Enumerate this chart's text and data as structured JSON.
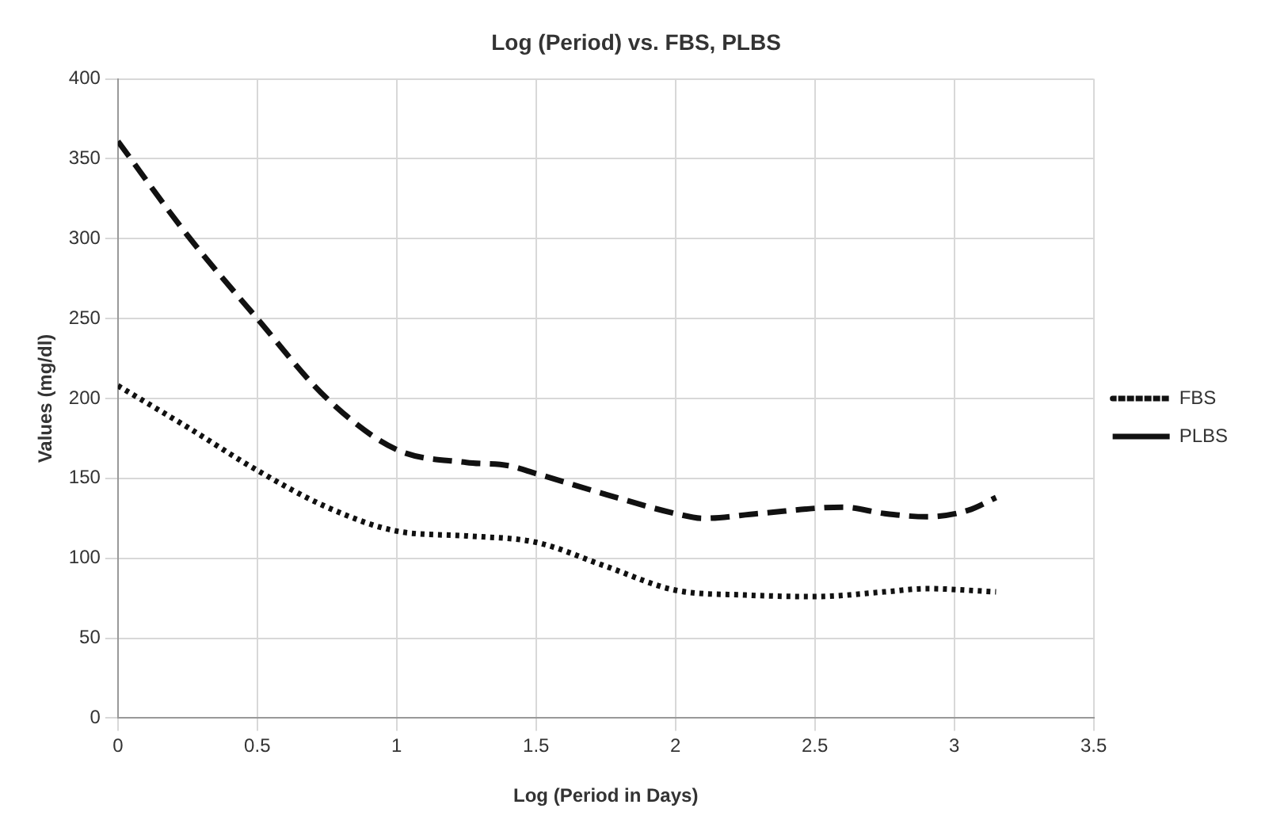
{
  "chart_data": {
    "type": "line",
    "title": "Log (Period) vs. FBS, PLBS",
    "xlabel": "Log (Period in Days)",
    "ylabel": "Values (mg/dl)",
    "xlim": [
      0,
      3.5
    ],
    "xticks": [
      0,
      0.5,
      1,
      1.5,
      2,
      2.5,
      3,
      3.5
    ],
    "ylim": [
      0,
      400
    ],
    "yticks": [
      0,
      50,
      100,
      150,
      200,
      250,
      300,
      350,
      400
    ],
    "grid": true,
    "legend": "right",
    "marker": "none",
    "series": [
      {
        "name": "FBS",
        "color": "#111111",
        "line_style": "dotted",
        "x": [
          0,
          0.25,
          0.5,
          0.75,
          1,
          1.25,
          1.5,
          1.75,
          2,
          2.25,
          2.5,
          2.75,
          2.9,
          3.15
        ],
        "values": [
          208,
          182,
          155,
          132,
          117,
          114,
          110,
          95,
          80,
          77,
          76,
          79,
          81,
          79
        ]
      },
      {
        "name": "PLBS",
        "color": "#111111",
        "line_style": "dashed",
        "x": [
          0,
          0.25,
          0.5,
          0.75,
          1,
          1.25,
          1.4,
          1.5,
          1.75,
          2,
          2.1,
          2.3,
          2.6,
          2.75,
          2.9,
          3.05,
          3.15
        ],
        "values": [
          361,
          302,
          250,
          200,
          168,
          160,
          158,
          153,
          140,
          128,
          125,
          128,
          132,
          128,
          126,
          130,
          138
        ]
      }
    ]
  }
}
